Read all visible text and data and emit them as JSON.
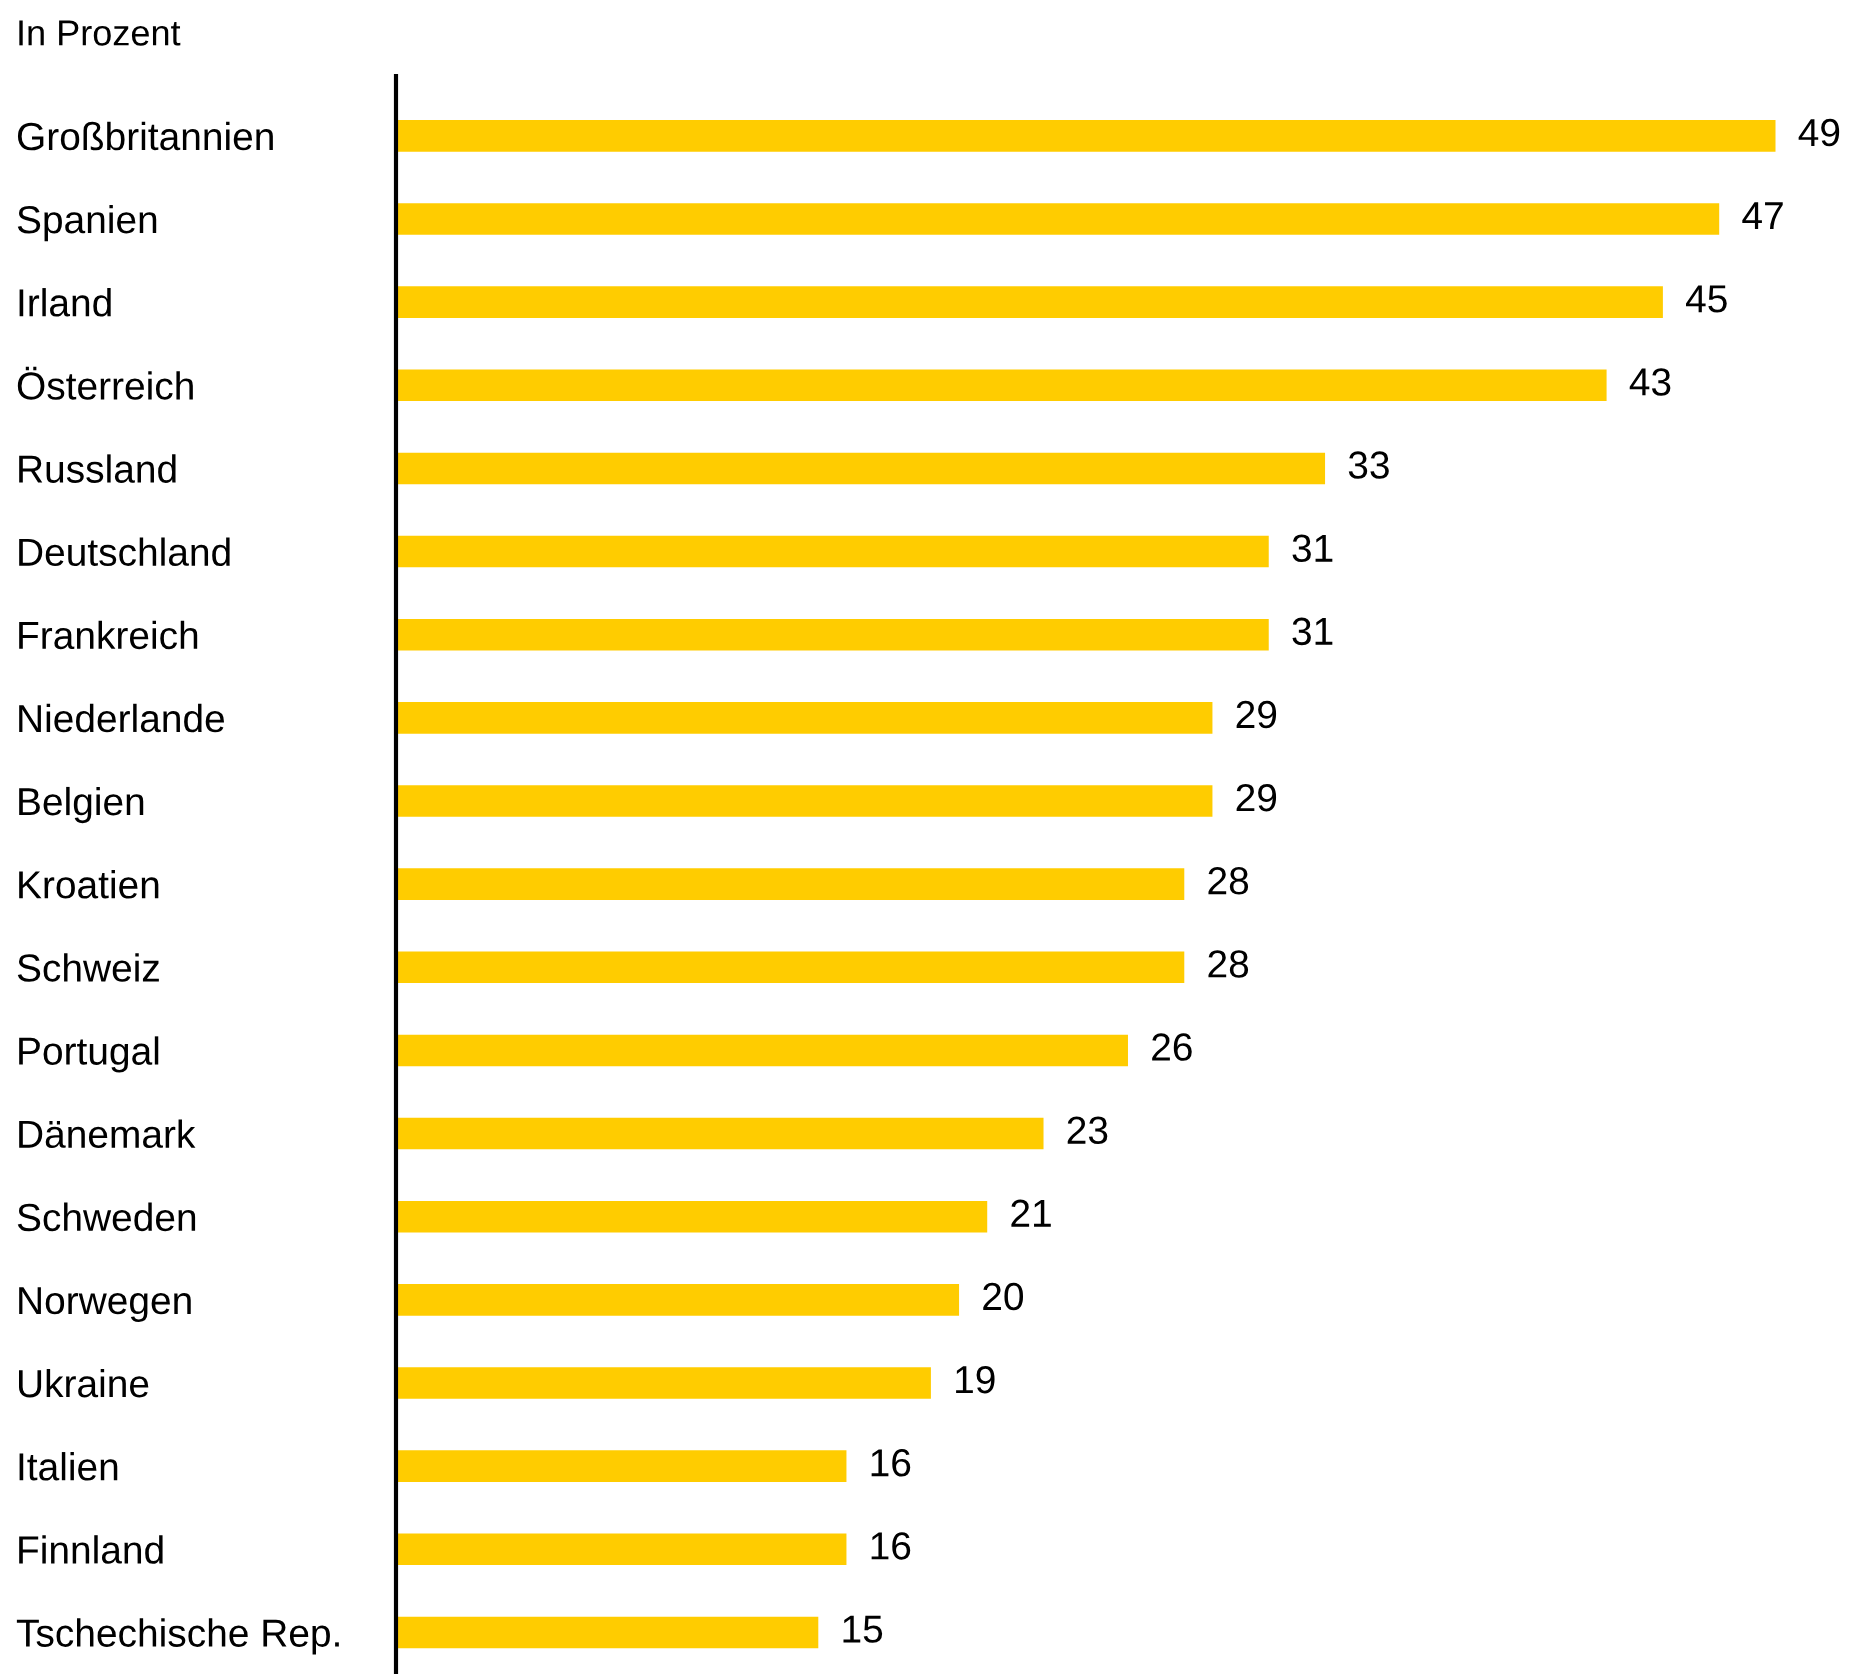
{
  "chart_data": {
    "type": "bar",
    "orientation": "horizontal",
    "subtitle": "In Prozent",
    "categories": [
      "Großbritannien",
      "Spanien",
      "Irland",
      "Österreich",
      "Russland",
      "Deutschland",
      "Frankreich",
      "Niederlande",
      "Belgien",
      "Kroatien",
      "Schweiz",
      "Portugal",
      "Dänemark",
      "Schweden",
      "Norwegen",
      "Ukraine",
      "Italien",
      "Finnland",
      "Tschechische Rep."
    ],
    "values": [
      49,
      47,
      45,
      43,
      33,
      31,
      31,
      29,
      29,
      28,
      28,
      26,
      23,
      21,
      20,
      19,
      16,
      16,
      15
    ],
    "color": "#ffcc00",
    "data_labels": true,
    "tick_labels": "y",
    "grid": false,
    "legend": false
  }
}
